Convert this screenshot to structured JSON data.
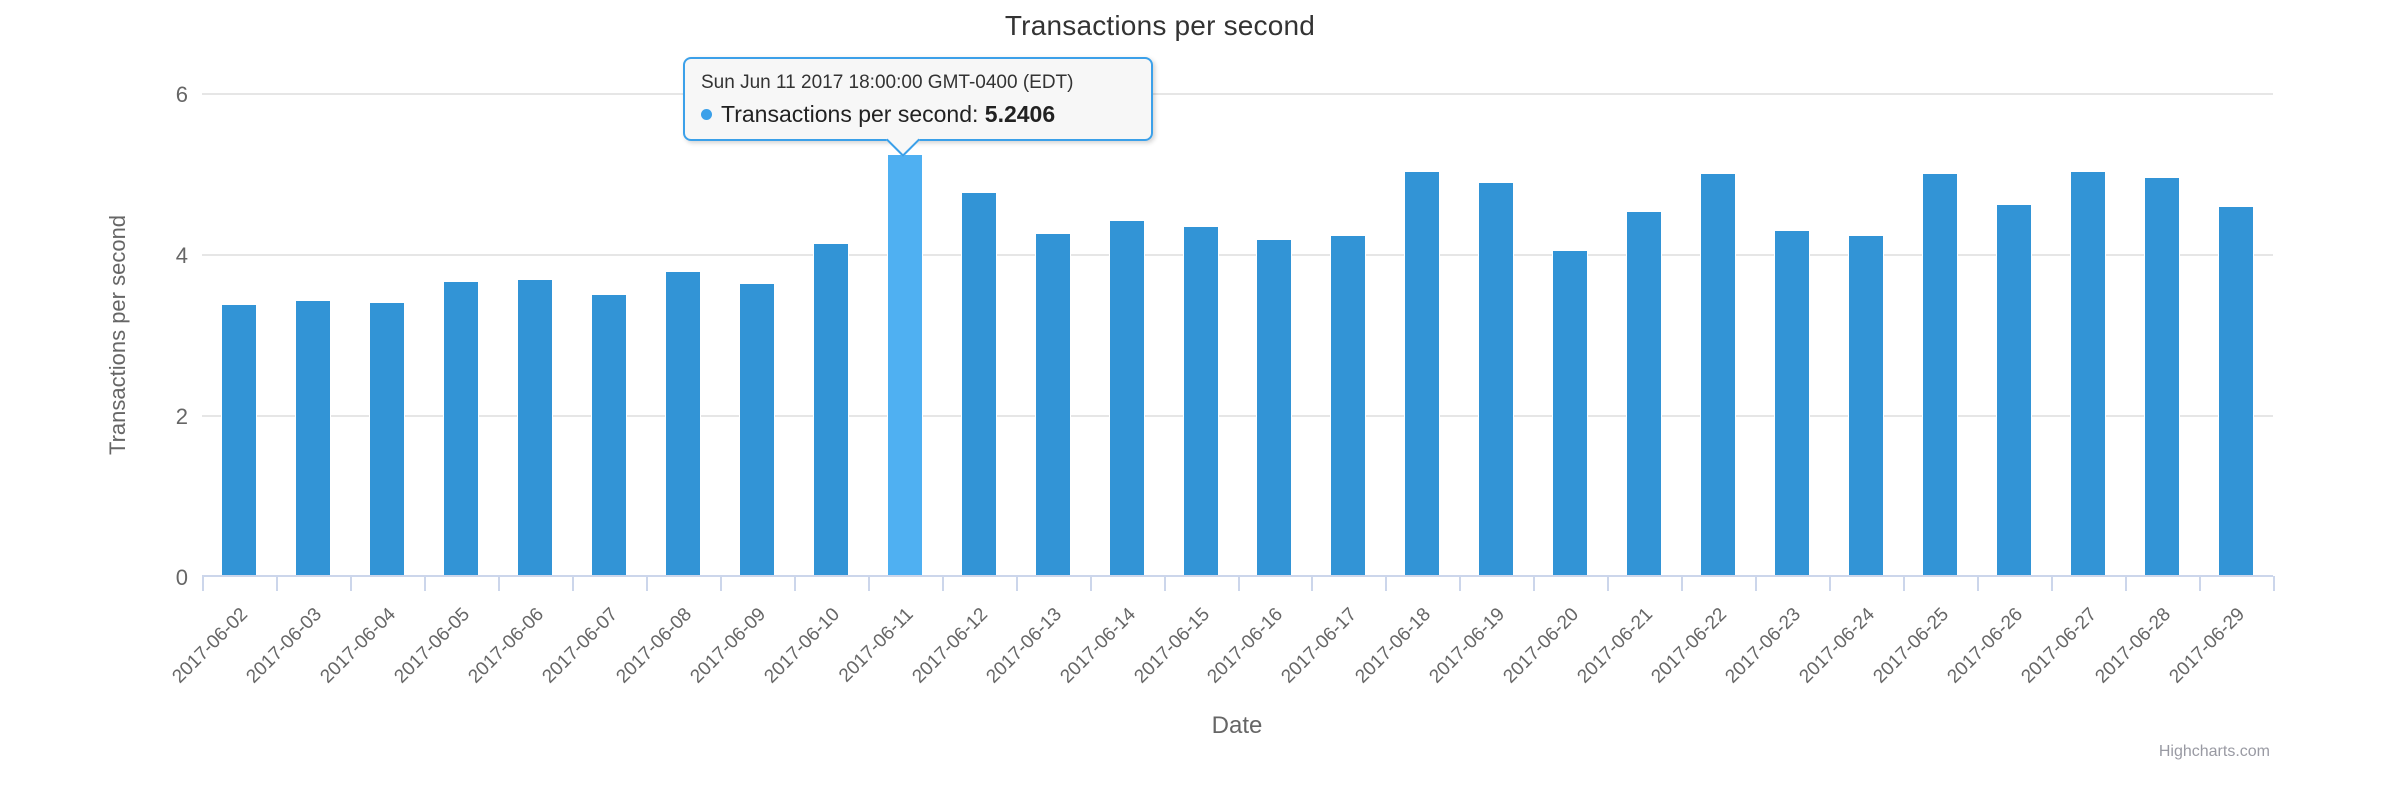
{
  "chart": {
    "title": "Transactions per second",
    "x_axis_title": "Date",
    "y_axis_title": "Transactions per second",
    "credits": "Highcharts.com"
  },
  "tooltip": {
    "header": "Sun Jun 11 2017 18:00:00 GMT-0400 (EDT)",
    "series_label": "Transactions per second",
    "separator": ": ",
    "value": "5.2406"
  },
  "colors": {
    "bar": "#3294d6",
    "bar_highlight": "#4fb0f2",
    "tooltip_border": "#3ba0e9",
    "grid": "#e6e6e6",
    "axis": "#ccd6eb",
    "label": "#666666",
    "title": "#333333",
    "credits": "#999999"
  },
  "chart_data": {
    "type": "bar",
    "title": "Transactions per second",
    "xlabel": "Date",
    "ylabel": "Transactions per second",
    "series_name": "Transactions per second",
    "ylim": [
      0,
      6
    ],
    "yticks": [
      0,
      2,
      4,
      6
    ],
    "grid": "horizontal-only",
    "legend": "none",
    "highlighted_index": 9,
    "highlighted_tooltip_value": 5.2406,
    "categories": [
      "2017-06-02",
      "2017-06-03",
      "2017-06-04",
      "2017-06-05",
      "2017-06-06",
      "2017-06-07",
      "2017-06-08",
      "2017-06-09",
      "2017-06-10",
      "2017-06-11",
      "2017-06-12",
      "2017-06-13",
      "2017-06-14",
      "2017-06-15",
      "2017-06-16",
      "2017-06-17",
      "2017-06-18",
      "2017-06-19",
      "2017-06-20",
      "2017-06-21",
      "2017-06-22",
      "2017-06-23",
      "2017-06-24",
      "2017-06-25",
      "2017-06-26",
      "2017-06-27",
      "2017-06-28",
      "2017-06-29"
    ],
    "values": [
      3.38,
      3.43,
      3.4,
      3.66,
      3.69,
      3.5,
      3.79,
      3.64,
      4.14,
      5.2406,
      4.77,
      4.26,
      4.42,
      4.35,
      4.19,
      4.24,
      5.03,
      4.9,
      4.05,
      4.53,
      5.01,
      4.3,
      4.24,
      5.01,
      4.62,
      5.03,
      4.96,
      4.6
    ]
  }
}
